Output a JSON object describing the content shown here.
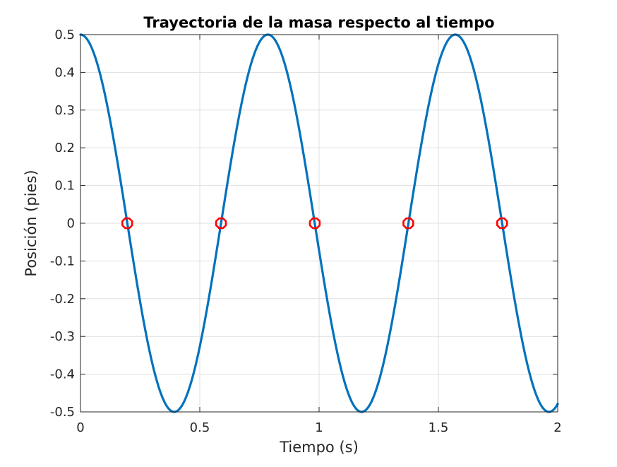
{
  "chart_data": {
    "type": "line",
    "title": "Trayectoria de la masa respecto al tiempo",
    "xlabel": "Tiempo (s)",
    "ylabel": "Posición (pies)",
    "xlim": [
      0,
      2
    ],
    "ylim": [
      -0.5,
      0.5
    ],
    "grid": true,
    "x_ticks": [
      0,
      0.5,
      1,
      1.5,
      2
    ],
    "x_tick_labels": [
      "0",
      "0.5",
      "1",
      "1.5",
      "2"
    ],
    "y_ticks": [
      0.5,
      0.4,
      0.3,
      0.2,
      0.1,
      0,
      -0.1,
      -0.2,
      -0.3,
      -0.4,
      -0.5
    ],
    "y_tick_labels": [
      "0.5",
      "0.4",
      "0.3",
      "0.2",
      "0.1",
      "0",
      "-0.1",
      "-0.2",
      "-0.3",
      "-0.4",
      "-0.5"
    ],
    "series": [
      {
        "color": "#0072bd",
        "function": "0.5*cos(8*t)",
        "x": [
          0,
          0.05,
          0.1,
          0.15,
          0.196,
          0.25,
          0.3,
          0.35,
          0.393,
          0.45,
          0.5,
          0.55,
          0.589,
          0.65,
          0.7,
          0.75,
          0.785,
          0.85,
          0.9,
          0.95,
          0.982,
          1.05,
          1.1,
          1.15,
          1.178,
          1.25,
          1.3,
          1.35,
          1.374,
          1.45,
          1.5,
          1.55,
          1.571,
          1.65,
          1.7,
          1.75,
          1.767,
          1.85,
          1.9,
          1.95,
          1.963,
          2.0
        ],
        "y": [
          0.5,
          0.461,
          0.348,
          0.181,
          0.0,
          -0.208,
          -0.369,
          -0.471,
          -0.5,
          -0.443,
          -0.327,
          -0.154,
          0.0,
          0.24,
          0.388,
          0.48,
          0.5,
          0.425,
          0.302,
          0.127,
          0.0,
          -0.265,
          -0.406,
          -0.487,
          -0.5,
          -0.404,
          -0.277,
          -0.1,
          0.0,
          0.291,
          0.422,
          0.492,
          0.5,
          0.382,
          0.25,
          0.073,
          0.0,
          -0.317,
          -0.437,
          -0.497,
          -0.5,
          -0.479
        ]
      }
    ],
    "markers": {
      "shape": "circle",
      "color": "#ff0000",
      "x": [
        0.196,
        0.589,
        0.982,
        1.374,
        1.767
      ],
      "y": [
        0,
        0,
        0,
        0,
        0
      ]
    }
  }
}
